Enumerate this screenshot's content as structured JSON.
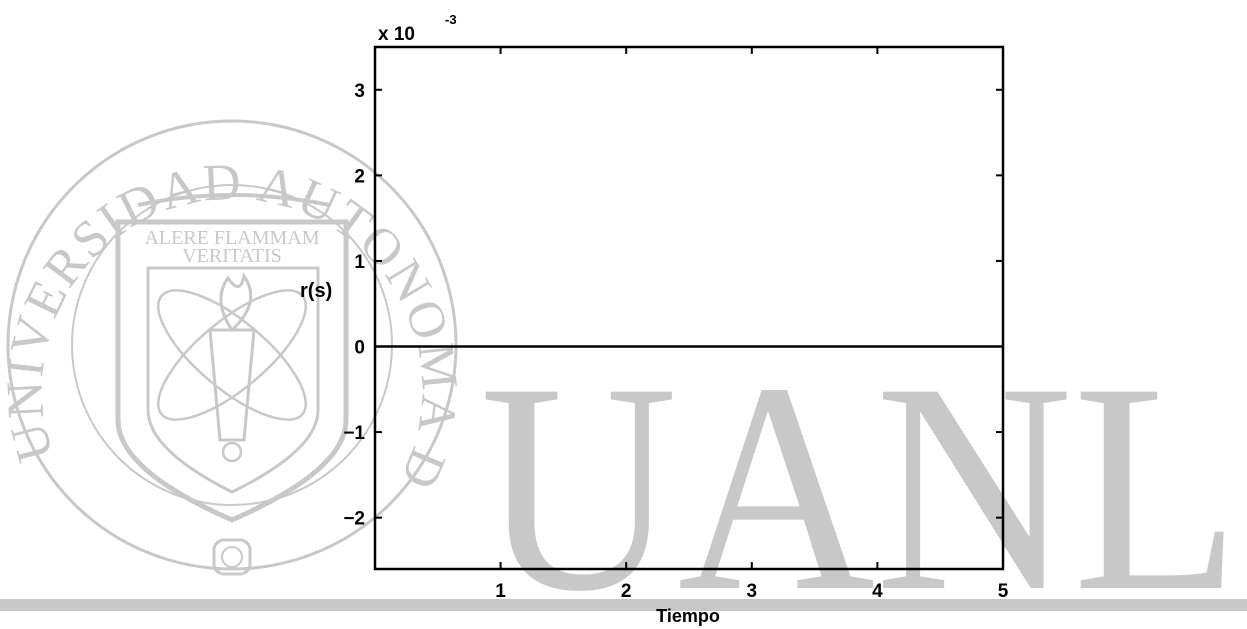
{
  "watermark": {
    "seal_lettering": "UNIVERSIDAD AUTONOMA DE NUEVO LEON",
    "motto_line1": "ALERE FLAMMAM",
    "motto_line2": "VERITATIS",
    "big_text": "UANL",
    "color": "#c8c8c8"
  },
  "chart_data": {
    "type": "line",
    "title": "",
    "xlabel": "Tiempo",
    "ylabel": "r(s)",
    "exponent_label": "x 10",
    "exponent_power": "-3",
    "xlim": [
      0,
      5
    ],
    "ylim": [
      -2.6,
      3.5
    ],
    "xticks": [
      1,
      2,
      3,
      4,
      5
    ],
    "yticks": [
      -2,
      -1,
      0,
      1,
      2,
      3
    ],
    "ytick_labels": [
      "−2",
      "−1",
      "0",
      "1",
      "2",
      "3"
    ],
    "x": [
      0,
      5
    ],
    "series": [
      {
        "values": [
          0,
          0
        ]
      }
    ],
    "grid": false,
    "line_color": "#000000"
  }
}
